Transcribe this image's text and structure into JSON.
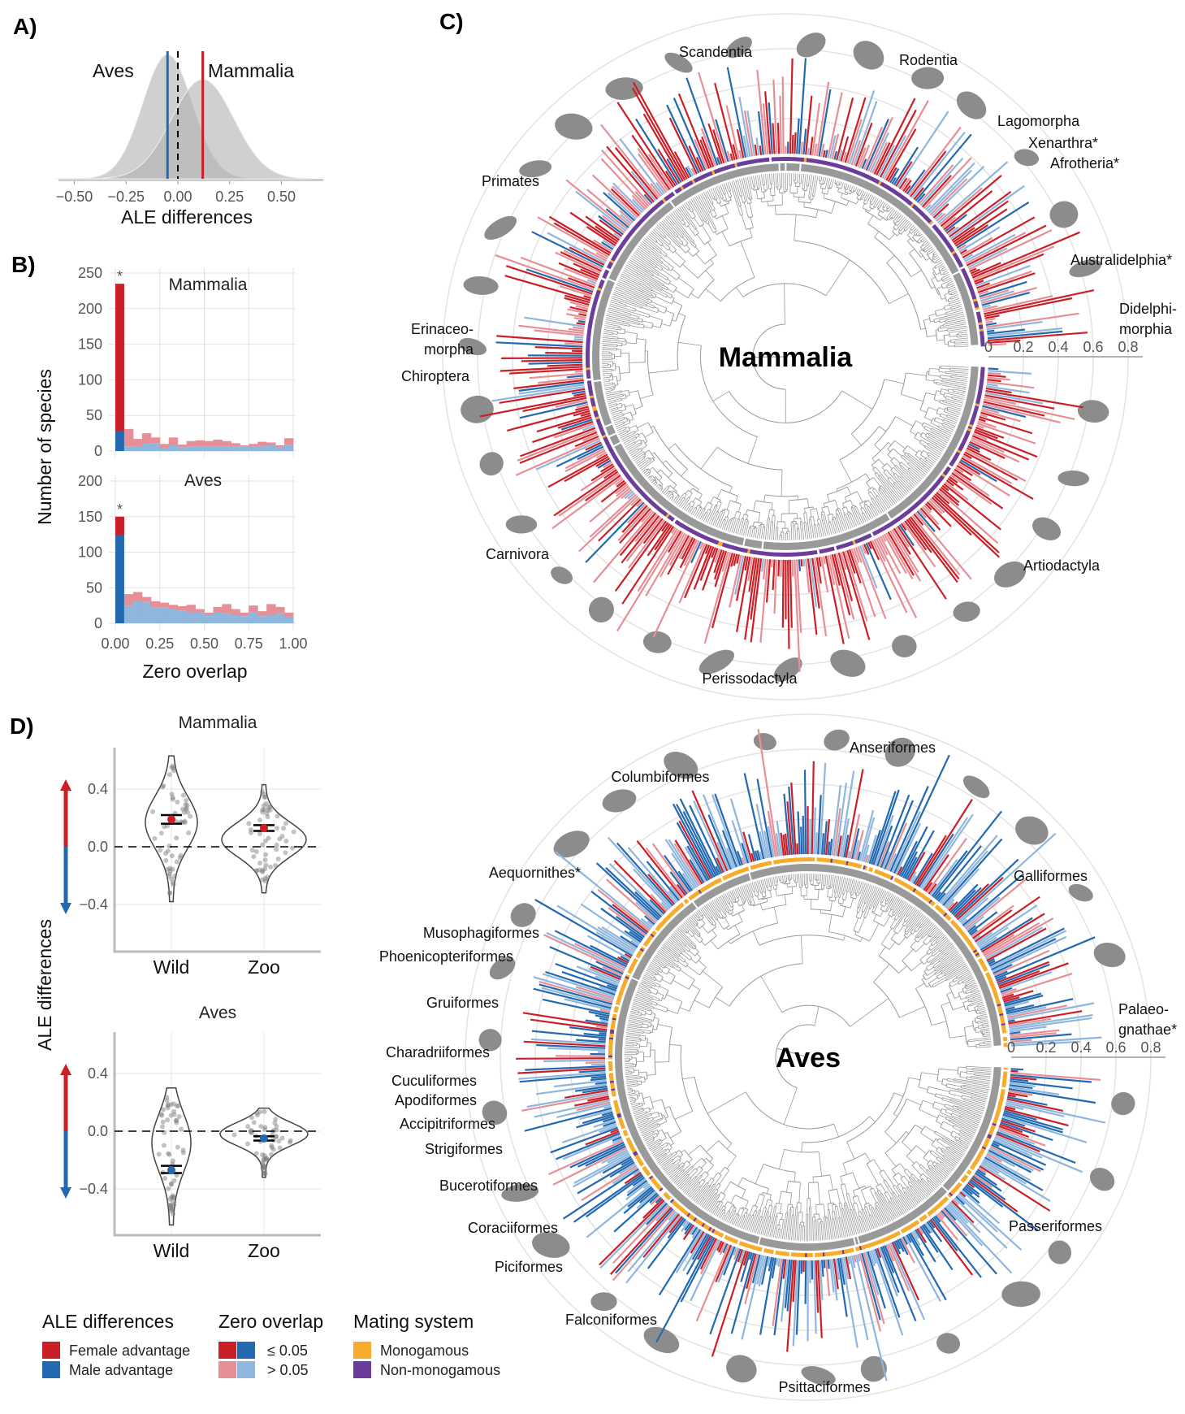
{
  "colors": {
    "female_strong": "#cb1f27",
    "male_strong": "#2369b0",
    "female_weak": "#e68f96",
    "male_weak": "#8fb6dc",
    "monogamous": "#f7ab2a",
    "non_monogamous": "#6b3c9a",
    "tree": "#999999",
    "silhouette": "#8c8c8c"
  },
  "panels": {
    "a": "A)",
    "b": "B)",
    "c": "C)",
    "d": "D)"
  },
  "chart_data": [
    {
      "panel": "A",
      "type": "area",
      "xlabel": "ALE differences",
      "xticks": [
        "−0.50",
        "−0.25",
        "0.00",
        "0.25",
        "0.50"
      ],
      "xlim": [
        -0.6,
        0.65
      ],
      "series": [
        {
          "name": "Aves",
          "mean": -0.05,
          "sd": 0.12,
          "line_color": "#2369b0"
        },
        {
          "name": "Mammalia",
          "mean": 0.12,
          "sd": 0.15,
          "line_color": "#cb1f27"
        }
      ],
      "reference_line": 0
    },
    {
      "panel": "B",
      "type": "bar",
      "xlabel": "Zero overlap",
      "ylabel": "Number of species",
      "xticks": [
        "0.00",
        "0.25",
        "0.50",
        "0.75",
        "1.00"
      ],
      "bin_width": 0.05,
      "facets": [
        {
          "name": "Mammalia",
          "yticks": [
            "0",
            "50",
            "100",
            "150",
            "200",
            "250"
          ],
          "ylim": [
            0,
            250
          ],
          "star": "*",
          "first_bin": {
            "total": 235,
            "male": 28
          },
          "total": [
            31,
            17,
            25,
            19,
            10,
            19,
            9,
            14,
            15,
            14,
            16,
            14,
            11,
            8,
            10,
            13,
            12,
            8,
            18
          ],
          "male": [
            6,
            7,
            10,
            11,
            4,
            8,
            5,
            6,
            7,
            6,
            7,
            6,
            6,
            7,
            6,
            7,
            8,
            5,
            9
          ]
        },
        {
          "name": "Aves",
          "yticks": [
            "0",
            "50",
            "100",
            "150",
            "200"
          ],
          "ylim": [
            0,
            210
          ],
          "star": "*",
          "first_bin": {
            "total": 150,
            "male": 124
          },
          "total": [
            41,
            44,
            37,
            31,
            29,
            26,
            24,
            26,
            20,
            15,
            23,
            27,
            20,
            15,
            25,
            17,
            27,
            23,
            15
          ],
          "male": [
            25,
            32,
            30,
            22,
            22,
            20,
            18,
            16,
            16,
            12,
            16,
            14,
            12,
            10,
            15,
            10,
            12,
            14,
            8
          ]
        }
      ]
    },
    {
      "panel": "C",
      "type": "bar",
      "radial_axis_ticks": [
        "0",
        "0.2",
        "0.4",
        "0.6",
        "0.8"
      ],
      "trees": [
        {
          "name": "Mammalia",
          "clades": [
            "Scandentia",
            "Rodentia",
            "Lagomorpha",
            "Xenarthra*",
            "Afrotheria*",
            "Primates",
            "Australidelphia*",
            "Didelphi-",
            "morphia",
            "Erinaceo-",
            "morpha",
            "Chiroptera",
            "Carnivora",
            "Artiodactyla",
            "Perissodactyla"
          ]
        },
        {
          "name": "Aves",
          "clades": [
            "Anseriformes",
            "Columbiformes",
            "Galliformes",
            "Aequornithes*",
            "Musophagiformes",
            "Phoenicopteriformes",
            "Gruiformes",
            "Palaeo-",
            "gnathae*",
            "Charadriiformes",
            "Cuculiformes",
            "Apodiformes",
            "Accipitriformes",
            "Strigiformes",
            "Bucerotiformes",
            "Coraciiformes",
            "Passeriformes",
            "Piciformes",
            "Falconiformes",
            "Psittaciformes"
          ]
        }
      ]
    },
    {
      "panel": "D",
      "type": "scatter",
      "ylabel": "ALE differences",
      "yticks": [
        "−0.4",
        "0.0",
        "0.4"
      ],
      "categories": [
        "Wild",
        "Zoo"
      ],
      "facets": [
        {
          "name": "Mammalia",
          "groups": [
            {
              "label": "Wild",
              "min": -0.38,
              "max": 0.63,
              "mean": 0.19,
              "ci": [
                0.16,
                0.22
              ]
            },
            {
              "label": "Zoo",
              "min": -0.32,
              "max": 0.43,
              "mean": 0.13,
              "ci": [
                0.11,
                0.15
              ]
            }
          ]
        },
        {
          "name": "Aves",
          "groups": [
            {
              "label": "Wild",
              "min": -0.65,
              "max": 0.3,
              "mean": -0.27,
              "ci": [
                -0.29,
                -0.24
              ]
            },
            {
              "label": "Zoo",
              "min": -0.32,
              "max": 0.16,
              "mean": -0.05,
              "ci": [
                -0.065,
                -0.035
              ]
            }
          ]
        }
      ]
    }
  ],
  "legend": {
    "ale": {
      "title": "ALE differences",
      "items": [
        "Female advantage",
        "Male advantage"
      ]
    },
    "overlap": {
      "title": "Zero overlap",
      "items": [
        "≤ 0.05",
        "> 0.05"
      ]
    },
    "mating": {
      "title": "Mating system",
      "items": [
        "Monogamous",
        "Non-monogamous"
      ]
    }
  }
}
